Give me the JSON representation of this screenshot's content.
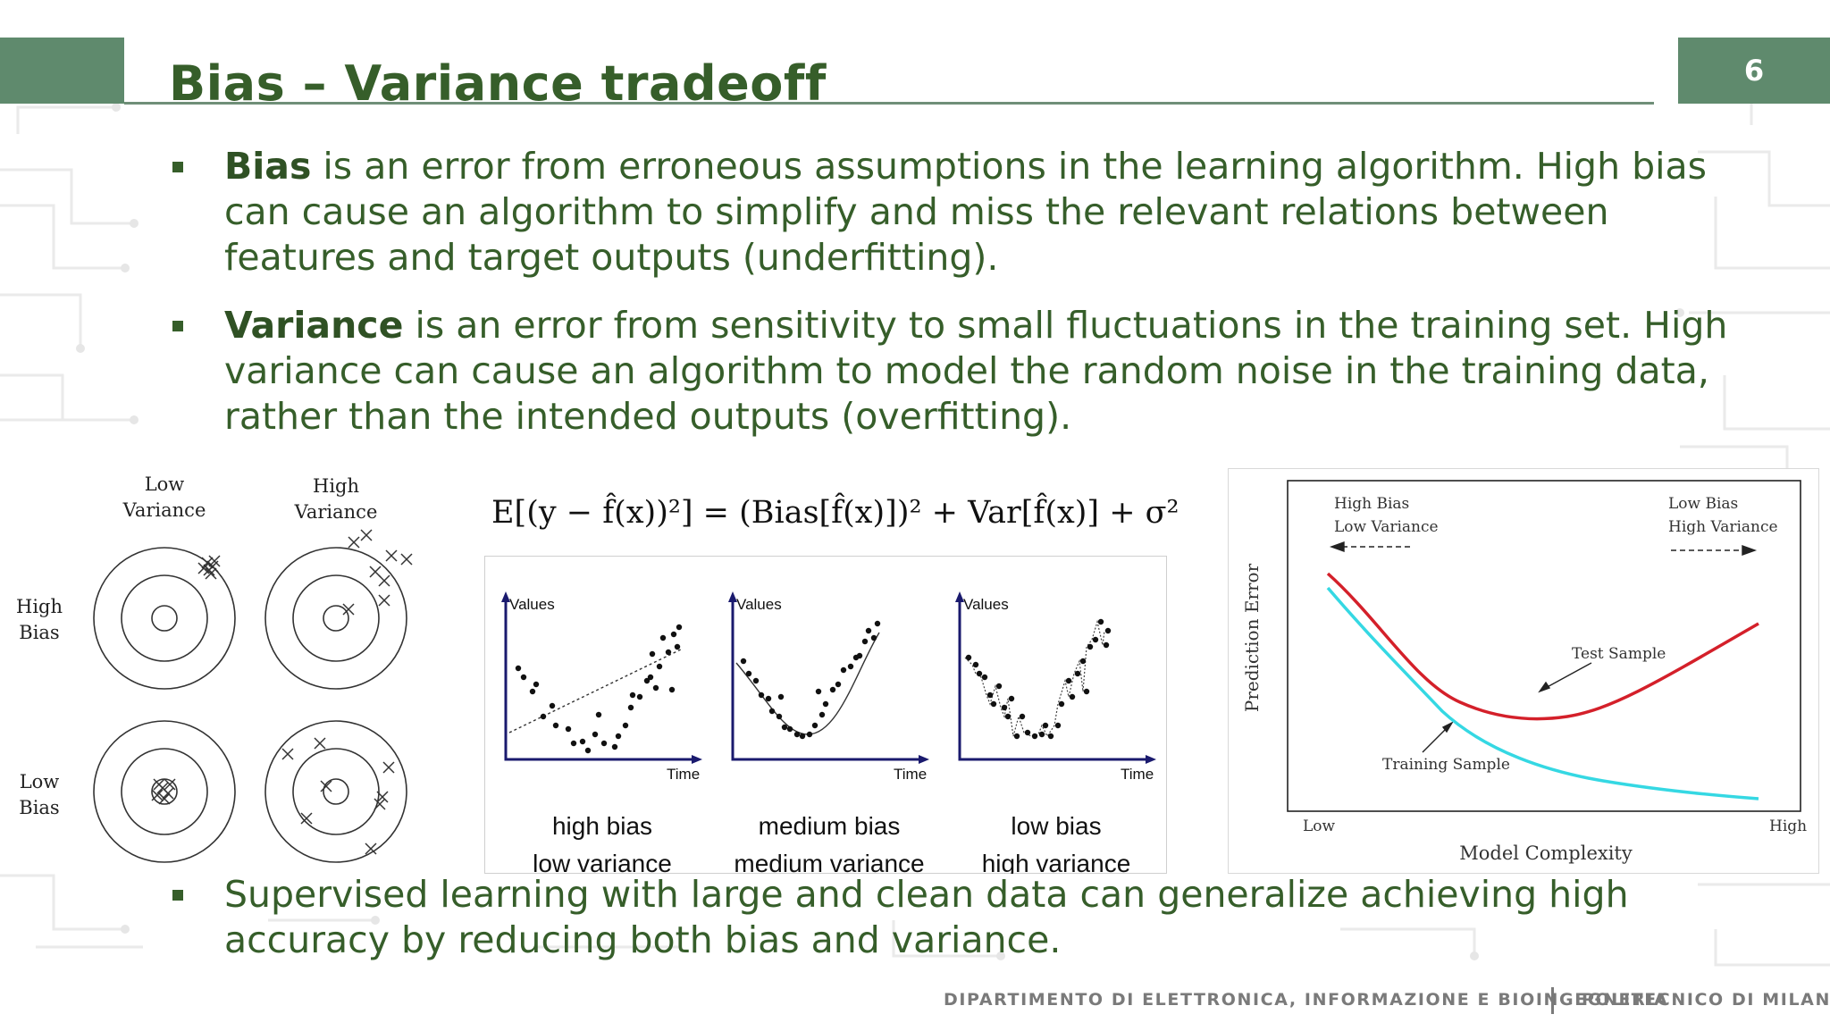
{
  "slide": {
    "title": "Bias – Variance tradeoff",
    "page_number": "6"
  },
  "bullets": [
    {
      "term": "Bias",
      "lines": [
        " is an error from erroneous assumptions in the learning algorithm. High bias",
        "can cause an algorithm to simplify and miss the relevant relations between",
        "features and target outputs (underfitting)."
      ]
    },
    {
      "term": "Variance",
      "lines": [
        " is an error from sensitivity to small fluctuations in the training set. High",
        "variance can cause an algorithm to model the random noise in the training data,",
        "rather than the intended outputs (overfitting)."
      ]
    },
    {
      "lines": [
        "Supervised learning with large and clean data can generalize achieving high",
        "accuracy by reducing both bias and variance."
      ]
    }
  ],
  "targets": {
    "col_low_variance": [
      "Low",
      "Variance"
    ],
    "col_high_variance": [
      "High",
      "Variance"
    ],
    "row_high_bias": [
      "High",
      "Bias"
    ],
    "row_low_bias": [
      "Low",
      "Bias"
    ]
  },
  "formula": {
    "text": "E[(y − f̂(x))²] = (Bias[f̂(x)])² + Var[f̂(x)] + σ²"
  },
  "fits": {
    "y_axis": "Values",
    "x_axis": "Time",
    "panels": [
      {
        "line1": "high bias",
        "line2": "low variance"
      },
      {
        "line1": "medium bias",
        "line2": "medium variance"
      },
      {
        "line1": "low bias",
        "line2": "high variance"
      }
    ]
  },
  "error_chart": {
    "ylabel": "Prediction Error",
    "xlabel": "Model Complexity",
    "x_low": "Low",
    "x_high": "High",
    "left_note": [
      "High Bias",
      "Low Variance"
    ],
    "right_note": [
      "Low Bias",
      "High Variance"
    ],
    "test_label": "Test Sample",
    "train_label": "Training Sample",
    "colors": {
      "test": "#d4202a",
      "train": "#35d8e3"
    }
  },
  "footer": {
    "department": "DIPARTIMENTO DI ELETTRONICA, INFORMAZIONE E BIOINGEGNERIA",
    "university": "POLITECNICO DI MILANO"
  }
}
